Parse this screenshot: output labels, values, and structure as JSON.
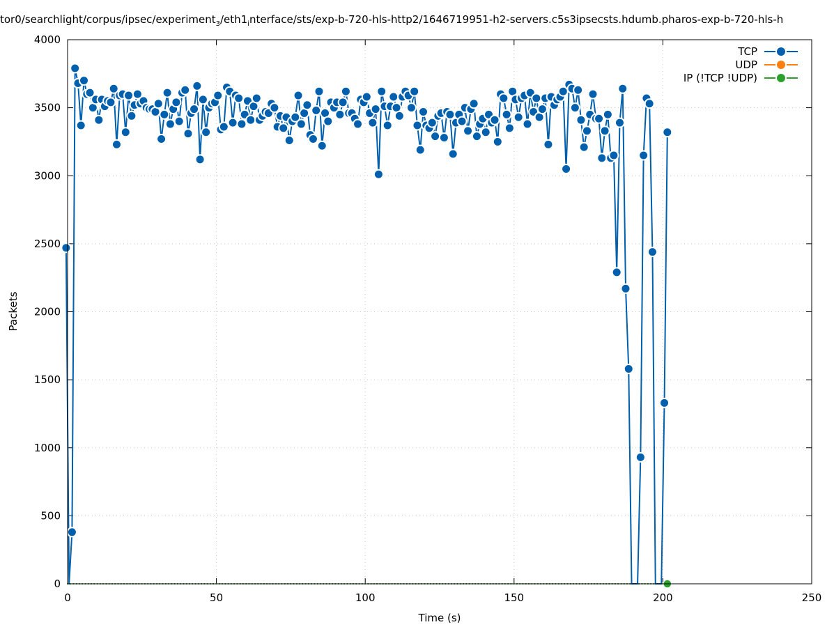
{
  "chart_data": {
    "type": "line",
    "title_parts": {
      "a": "tor0/searchlight/corpus/ipsec/experiment",
      "sub1": "3",
      "b": "/eth1",
      "sub2": "i",
      "c": "nterface/sts/exp-b-720-hls-http2/1646719951-h2-servers.c5s3ipsecsts.hdumb.pharos-exp-b-720-hls-h"
    },
    "xlabel": "Time (s)",
    "ylabel": "Packets",
    "xlim": [
      0,
      250
    ],
    "ylim": [
      0,
      4000
    ],
    "xticks": [
      "0",
      "50",
      "100",
      "150",
      "200",
      "250"
    ],
    "yticks": [
      "0",
      "500",
      "1000",
      "1500",
      "2000",
      "2500",
      "3000",
      "3500",
      "4000"
    ],
    "grid": true,
    "legend_position": "top-right",
    "x_start": -0.5,
    "x_step": 1,
    "series": [
      {
        "name": "TCP",
        "color": "#0060ad",
        "values": [
          2470,
          0,
          380,
          3790,
          3680,
          3370,
          3700,
          3600,
          3610,
          3500,
          3560,
          3410,
          3560,
          3510,
          3550,
          3540,
          3640,
          3230,
          3590,
          3600,
          3320,
          3590,
          3440,
          3520,
          3600,
          3530,
          3550,
          3500,
          3490,
          3490,
          3470,
          3530,
          3270,
          3450,
          3610,
          3380,
          3490,
          3540,
          3400,
          3610,
          3630,
          3310,
          3460,
          3490,
          3660,
          3120,
          3560,
          3320,
          3500,
          3530,
          3540,
          3590,
          3340,
          3360,
          3650,
          3620,
          3390,
          3590,
          3570,
          3380,
          3450,
          3550,
          3410,
          3510,
          3570,
          3410,
          3440,
          3470,
          3460,
          3530,
          3500,
          3360,
          3440,
          3350,
          3430,
          3260,
          3400,
          3430,
          3590,
          3380,
          3460,
          3520,
          3300,
          3270,
          3480,
          3620,
          3220,
          3460,
          3400,
          3540,
          3500,
          3540,
          3450,
          3540,
          3620,
          3460,
          3460,
          3420,
          3380,
          3560,
          3540,
          3580,
          3460,
          3390,
          3490,
          3010,
          3620,
          3510,
          3370,
          3510,
          3580,
          3500,
          3440,
          3580,
          3620,
          3590,
          3500,
          3620,
          3370,
          3190,
          3470,
          3370,
          3350,
          3390,
          3290,
          3440,
          3460,
          3280,
          3470,
          3450,
          3160,
          3390,
          3450,
          3400,
          3500,
          3330,
          3490,
          3530,
          3290,
          3380,
          3420,
          3320,
          3450,
          3390,
          3410,
          3250,
          3600,
          3570,
          3450,
          3350,
          3620,
          3560,
          3430,
          3570,
          3590,
          3380,
          3610,
          3470,
          3570,
          3430,
          3490,
          3570,
          3230,
          3580,
          3520,
          3560,
          3580,
          3620,
          3050,
          3670,
          3640,
          3500,
          3630,
          3410,
          3210,
          3330,
          3450,
          3600,
          3420,
          3420,
          3130,
          3330,
          3450,
          3130,
          3150,
          2290,
          3390,
          3640,
          2170,
          1580,
          0,
          0,
          0,
          930,
          3150,
          3570,
          3530,
          2440,
          0,
          0,
          0,
          1330,
          3320
        ]
      },
      {
        "name": "UDP",
        "color": "#ff7f0e",
        "values": []
      },
      {
        "name": "IP (!TCP  !UDP)",
        "color": "#2ca02c",
        "values": "all 0",
        "final_point": 0
      }
    ]
  }
}
